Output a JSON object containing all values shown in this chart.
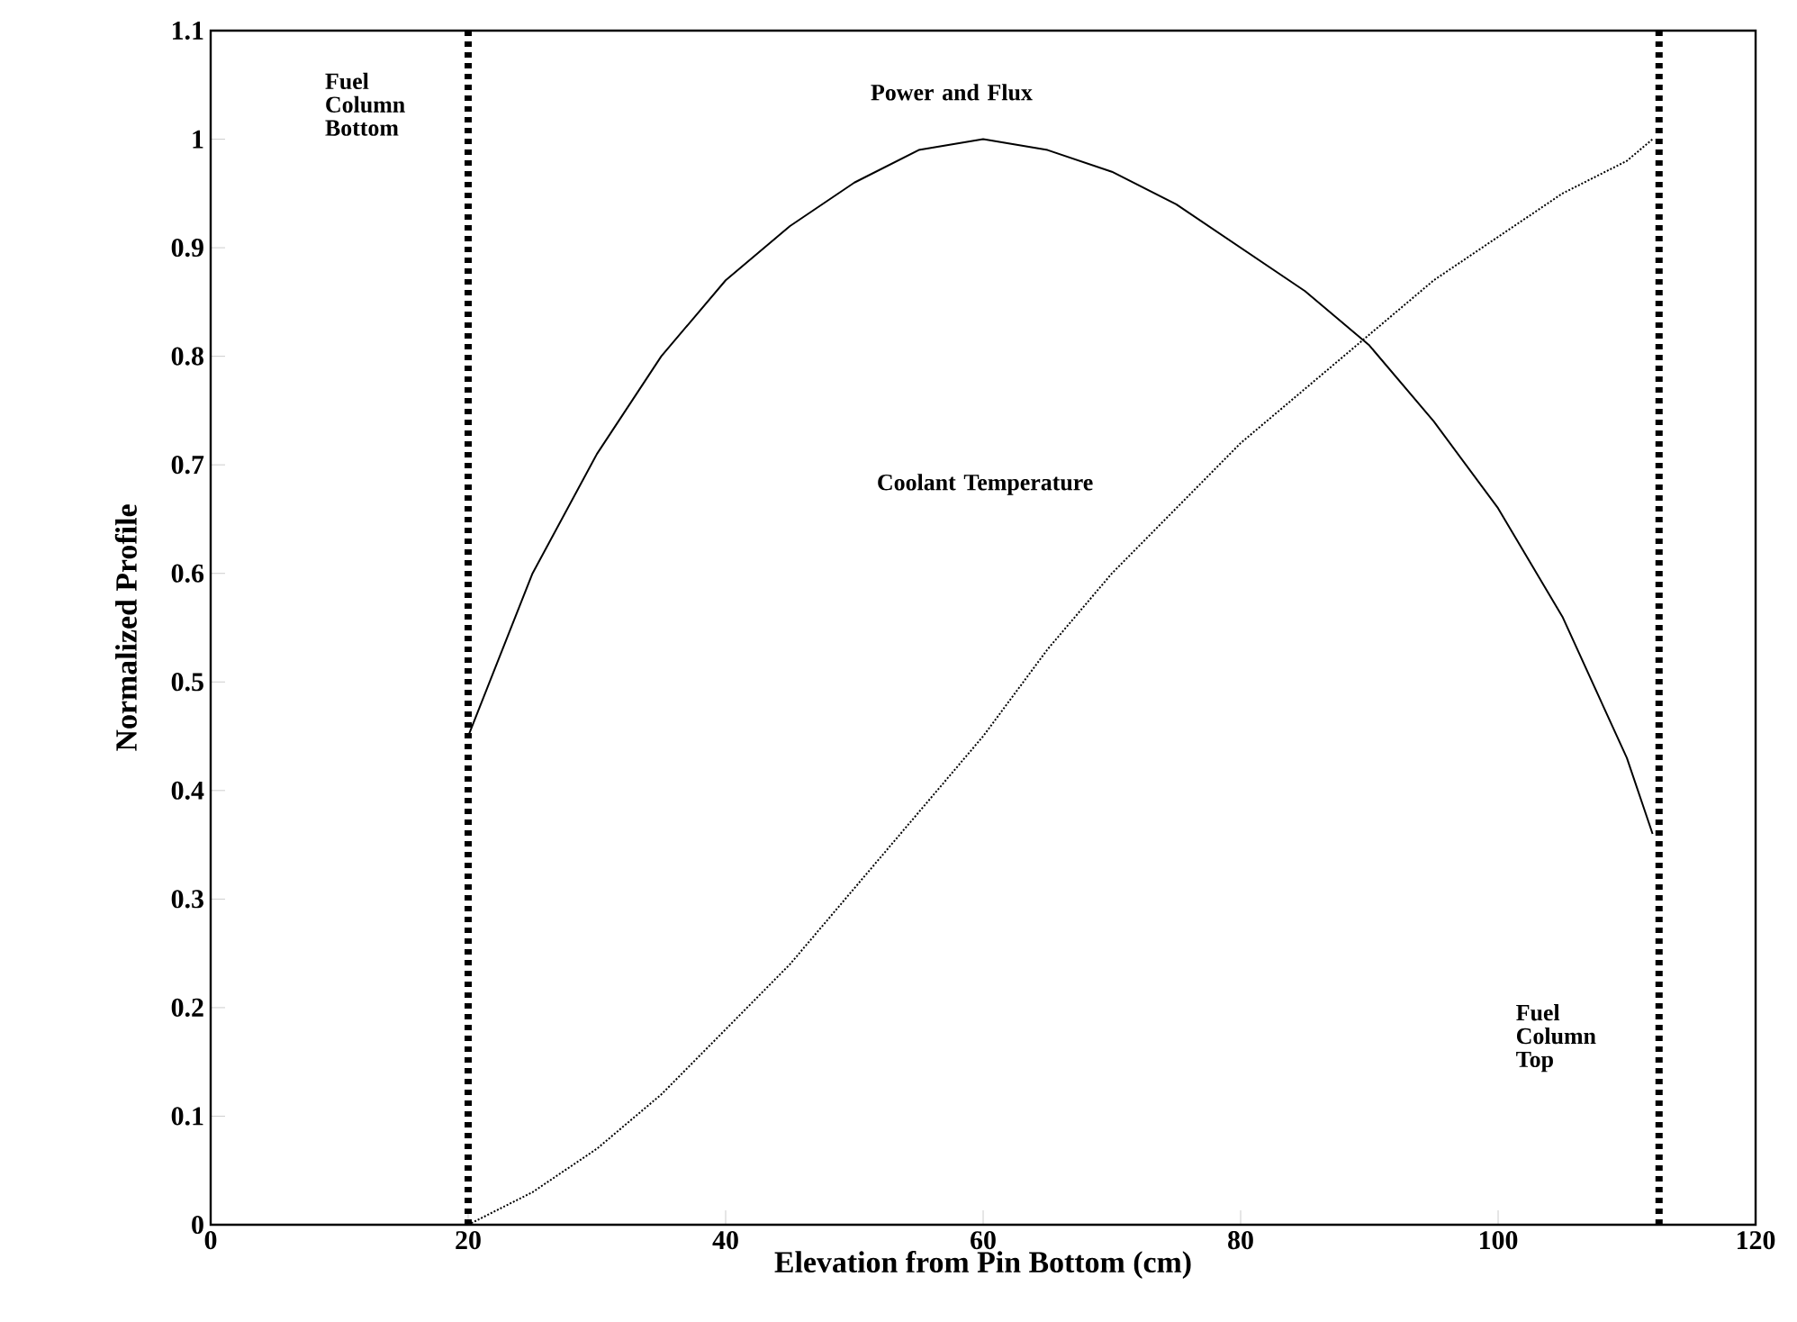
{
  "chart_data": {
    "type": "line",
    "xlabel": "Elevation from Pin Bottom (cm)",
    "ylabel": "Normalized Profile",
    "xlim": [
      0,
      120
    ],
    "ylim": [
      0,
      1.1
    ],
    "xticks": [
      0,
      20,
      40,
      60,
      80,
      100,
      120
    ],
    "yticks": [
      0,
      0.1,
      0.2,
      0.3,
      0.4,
      0.5,
      0.6,
      0.7,
      0.8,
      0.9,
      1,
      1.1
    ],
    "grid": false,
    "legend": false,
    "marker": "none",
    "series": [
      {
        "name": "Power and Flux",
        "color": "#000000",
        "line_style": "solid",
        "x": [
          20,
          25,
          30,
          35,
          40,
          45,
          50,
          55,
          60,
          65,
          70,
          75,
          80,
          85,
          90,
          95,
          100,
          105,
          110,
          112
        ],
        "values": [
          0.45,
          0.6,
          0.71,
          0.8,
          0.87,
          0.92,
          0.96,
          0.99,
          1.0,
          0.99,
          0.97,
          0.94,
          0.9,
          0.86,
          0.81,
          0.74,
          0.66,
          0.56,
          0.43,
          0.36
        ]
      },
      {
        "name": "Coolant Temperature",
        "color": "#000000",
        "line_style": "dotted",
        "x": [
          20,
          25,
          30,
          35,
          40,
          45,
          50,
          55,
          60,
          65,
          70,
          75,
          80,
          85,
          90,
          95,
          100,
          105,
          110,
          112
        ],
        "values": [
          0,
          0.03,
          0.07,
          0.12,
          0.18,
          0.24,
          0.31,
          0.38,
          0.45,
          0.53,
          0.6,
          0.66,
          0.72,
          0.77,
          0.82,
          0.87,
          0.91,
          0.95,
          0.98,
          1.0
        ]
      }
    ],
    "ref_lines": [
      {
        "axis": "x",
        "value": 20,
        "label": "Fuel Column Bottom",
        "color": "#000000",
        "line_style": "dotted"
      },
      {
        "axis": "x",
        "value": 112.5,
        "label": "Fuel Column Top",
        "color": "#000000",
        "line_style": "dotted"
      }
    ]
  }
}
